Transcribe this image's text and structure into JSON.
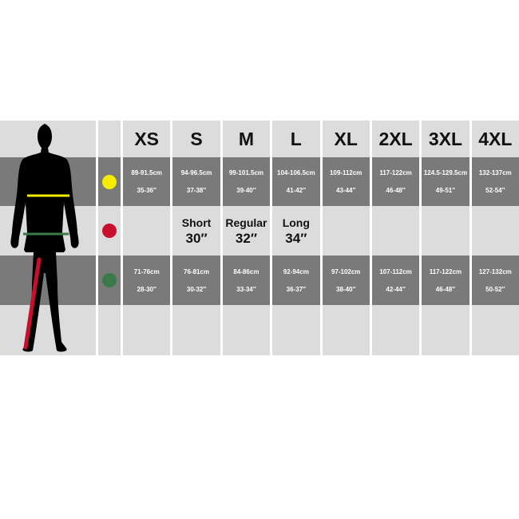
{
  "sizes": [
    "XS",
    "S",
    "M",
    "L",
    "XL",
    "2XL",
    "3XL",
    "4XL"
  ],
  "rows": [
    {
      "measure": "chest",
      "icon": "yellow-dot-icon",
      "color": "#f5ec00",
      "cm": [
        "89-91.5cm",
        "94-96.5cm",
        "99-101.5cm",
        "104-106.5cm",
        "109-112cm",
        "117-122cm",
        "124.5-129.5cm",
        "132-137cm"
      ],
      "inch": [
        "35-36″",
        "37-38″",
        "39-40″",
        "41-42″",
        "43-44″",
        "46-48″",
        "49-51″",
        "52-54″"
      ]
    },
    {
      "measure": "leg",
      "icon": "red-dot-icon",
      "color": "#c8102e",
      "lengths": [
        {
          "label": "Short",
          "value": "30″"
        },
        {
          "label": "Regular",
          "value": "32″"
        },
        {
          "label": "Long",
          "value": "34″"
        }
      ]
    },
    {
      "measure": "waist",
      "icon": "green-dot-icon",
      "color": "#3a7a4a",
      "cm": [
        "71-76cm",
        "76-81cm",
        "84-86cm",
        "92-94cm",
        "97-102cm",
        "107-112cm",
        "117-122cm",
        "127-132cm"
      ],
      "inch": [
        "28-30″",
        "30-32″",
        "33-34″",
        "36-37″",
        "38-40″",
        "42-44″",
        "46-48″",
        "50-52″"
      ]
    }
  ]
}
